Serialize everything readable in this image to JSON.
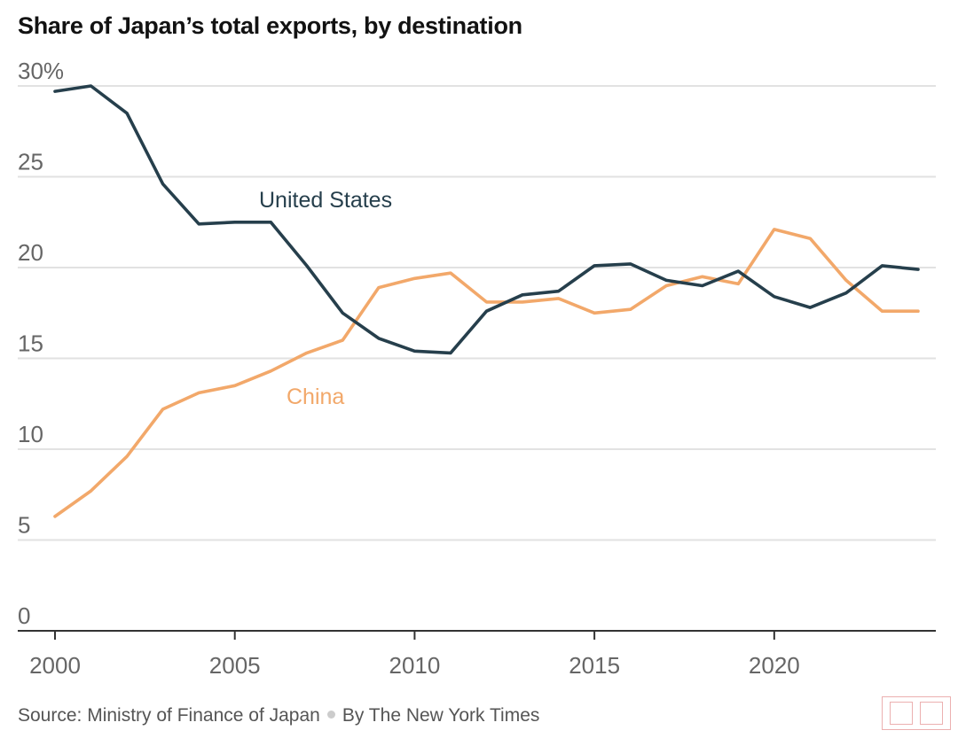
{
  "title": "Share of Japan’s total exports, by destination",
  "footer": {
    "source": "Source: Ministry of Finance of Japan",
    "credit": "By The New York Times"
  },
  "chart_data": {
    "type": "line",
    "title": "Share of Japan’s total exports, by destination",
    "xlabel": "",
    "ylabel": "",
    "x": [
      2000,
      2001,
      2002,
      2003,
      2004,
      2005,
      2006,
      2007,
      2008,
      2009,
      2010,
      2011,
      2012,
      2013,
      2014,
      2015,
      2016,
      2017,
      2018,
      2019,
      2020,
      2021,
      2022,
      2023,
      2024
    ],
    "series": [
      {
        "name": "United States",
        "color": "#263f4c",
        "values": [
          29.7,
          30.0,
          28.5,
          24.6,
          22.4,
          22.5,
          22.5,
          20.1,
          17.5,
          16.1,
          15.4,
          15.3,
          17.6,
          18.5,
          18.7,
          20.1,
          20.2,
          19.3,
          19.0,
          19.8,
          18.4,
          17.8,
          18.6,
          20.1,
          19.9
        ]
      },
      {
        "name": "China",
        "color": "#f2a86a",
        "values": [
          6.3,
          7.7,
          9.6,
          12.2,
          13.1,
          13.5,
          14.3,
          15.3,
          16.0,
          18.9,
          19.4,
          19.7,
          18.1,
          18.1,
          18.3,
          17.5,
          17.7,
          19.0,
          19.5,
          19.1,
          22.1,
          21.6,
          19.3,
          17.6,
          17.6
        ]
      }
    ],
    "xticks": [
      "2000",
      "2005",
      "2010",
      "2015",
      "2020"
    ],
    "xtick_values": [
      2000,
      2005,
      2010,
      2015,
      2020
    ],
    "yticks": [
      "0",
      "5",
      "10",
      "15",
      "20",
      "25",
      "30%"
    ],
    "ytick_values": [
      0,
      5,
      10,
      15,
      20,
      25,
      30
    ],
    "ylim": [
      0,
      30
    ],
    "xlim": [
      2000,
      2024
    ],
    "grid": true,
    "annotations": [
      "United States",
      "China"
    ]
  }
}
